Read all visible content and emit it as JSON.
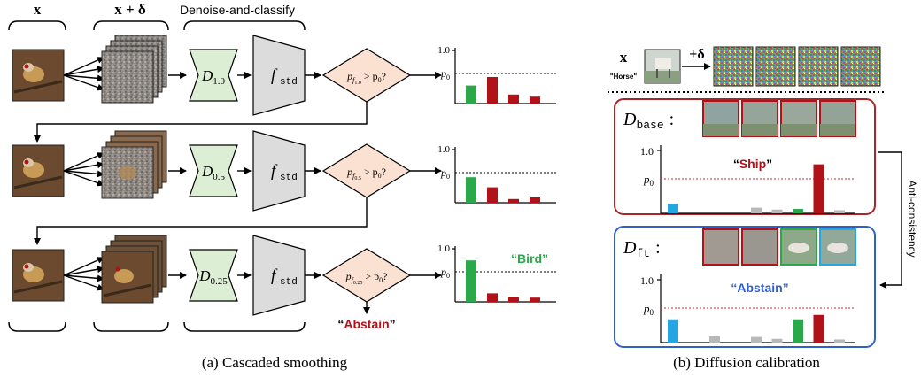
{
  "panel_a": {
    "header_x": "x",
    "header_x_delta": "x + δ",
    "header_denoise": "Denoise-and-classify",
    "classifier_label": "f",
    "classifier_sub": "std",
    "stages": [
      {
        "sigma": "1.0",
        "cond_sub": "f",
        "cond_subsub": "1.0"
      },
      {
        "sigma": "0.5",
        "cond_sub": "f",
        "cond_subsub": "0.5"
      },
      {
        "sigma": "0.25",
        "cond_sub": "f",
        "cond_subsub": "0.25"
      }
    ],
    "cond_p": "p",
    "cond_rest": " > p",
    "cond_zero": "0",
    "cond_q": "?",
    "axis_top": "1.0",
    "axis_p0": "p",
    "axis_p0_sub": "0",
    "bird_label": "Bird",
    "abstain_label": "Abstain",
    "caption": "(a)  Cascaded smoothing",
    "hist_values": [
      [
        0.34,
        0.5,
        0.17,
        0.13
      ],
      [
        0.48,
        0.29,
        0.07,
        0.1
      ],
      [
        0.78,
        0.16,
        0.09,
        0.08
      ]
    ]
  },
  "panel_b": {
    "x_label": "x",
    "horse_label": "\"Horse\"",
    "plus_delta": "+δ",
    "d_base": "D",
    "d_base_sub": "base",
    "d_ft": "D",
    "d_ft_sub": "ft",
    "colon": ":",
    "axis_top": "1.0",
    "axis_p0": "p",
    "axis_p0_sub": "0",
    "ship_label": "Ship",
    "abstain_label": "Abstain",
    "anti_consistency": "Anti-consistency",
    "caption": "(b)  Diffusion calibration",
    "base_hist": [
      0.15,
      0.0,
      0.0,
      0.0,
      0.09,
      0.06,
      0.07,
      0.78,
      0.05
    ],
    "ft_hist": [
      0.37,
      0.0,
      0.1,
      0.0,
      0.09,
      0.06,
      0.37,
      0.44,
      0.05
    ]
  },
  "colors": {
    "green": "#2aa84a",
    "red": "#b01218",
    "gray": "#b8b8b8",
    "blue": "#26a6e0",
    "denoiser_fill": "#dcefd4",
    "classifier_fill": "#dcdcdc",
    "diamond_fill": "#fbe1d2",
    "base_frame": "#a8262a",
    "ft_frame": "#2f5fc8",
    "dotted_red": "#c0272d"
  }
}
